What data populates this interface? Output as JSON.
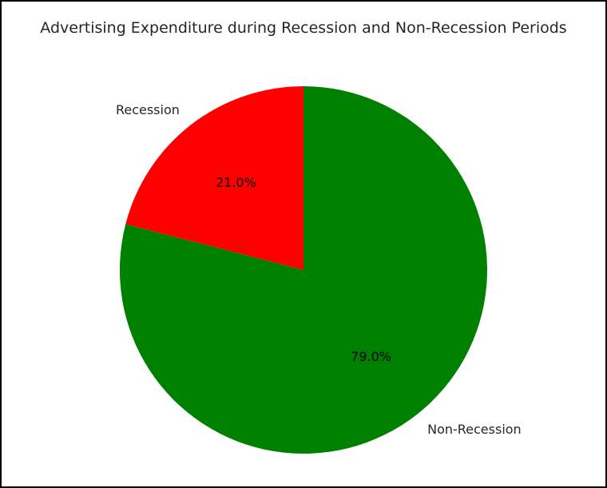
{
  "chart_data": {
    "type": "pie",
    "title": "Advertising Expenditure during Recession and Non-Recession Periods",
    "labels": [
      "Recession",
      "Non-Recession"
    ],
    "values": [
      21.0,
      79.0
    ],
    "percent_labels": [
      "21.0%",
      "79.0%"
    ],
    "colors": [
      "#ff0000",
      "#008000"
    ],
    "start_angle_deg": 90,
    "direction": "counterclockwise"
  }
}
